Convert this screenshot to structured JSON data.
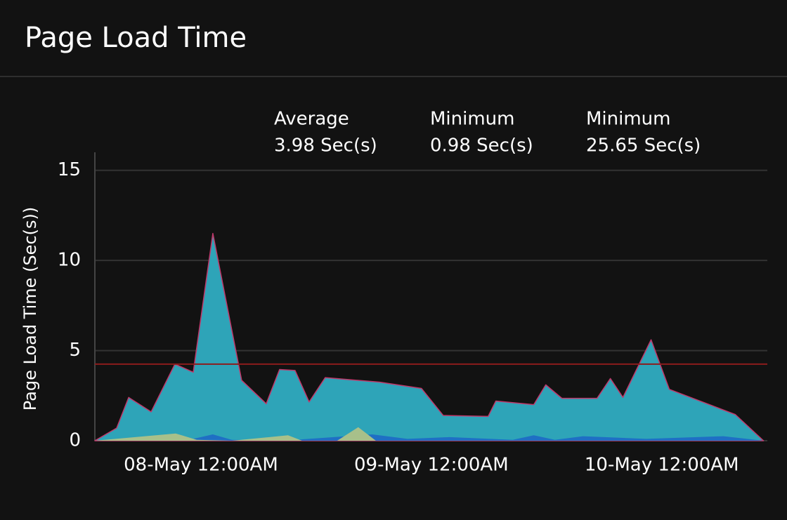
{
  "chart_data": {
    "type": "area",
    "title": "Page Load Time",
    "stats": [
      {
        "label": "Average",
        "value": "3.98 Sec(s)"
      },
      {
        "label": "Minimum",
        "value": "0.98 Sec(s)"
      },
      {
        "label": "Minimum",
        "value": "25.65 Sec(s)"
      }
    ],
    "y_label": "Page Load Time (Sec(s))",
    "xlim": [
      -11.05,
      59
    ],
    "xticks": [
      {
        "value": 0,
        "label": "08-May 12:00AM"
      },
      {
        "value": 24,
        "label": "09-May 12:00AM"
      },
      {
        "value": 48,
        "label": "10-May 12:00AM"
      }
    ],
    "ylim": [
      0,
      16
    ],
    "yticks": [
      0,
      5,
      10,
      15
    ],
    "grid": true,
    "reference_line": {
      "value": 4.25,
      "color": "#8b1c1c"
    },
    "series": [
      {
        "color": "#2ea4b8",
        "stroke": "#c0396b",
        "x": [
          -11.05,
          -8.78,
          -7.53,
          -5.19,
          -2.71,
          -0.8,
          1.24,
          4.24,
          6.8,
          8.19,
          9.8,
          11.27,
          12.95,
          18.58,
          22.97,
          25.24,
          29.92,
          30.72,
          34.67,
          35.92,
          37.6,
          41.26,
          42.65,
          43.96,
          46.89,
          48.79,
          55.67,
          58.6
        ],
        "values": [
          0,
          0.7,
          2.4,
          1.6,
          4.25,
          3.8,
          11.5,
          3.35,
          2.05,
          3.95,
          3.9,
          2.15,
          3.5,
          3.25,
          2.9,
          1.4,
          1.35,
          2.2,
          2.0,
          3.1,
          2.35,
          2.35,
          3.45,
          2.4,
          5.6,
          2.85,
          1.45,
          0
        ]
      },
      {
        "color": "#1f6fc4",
        "x": [
          -11.05,
          -7.39,
          -0.8,
          1.24,
          3.22,
          9.8,
          17.85,
          21.51,
          25.9,
          32.48,
          34.67,
          36.87,
          39.8,
          46.38,
          54.43,
          58.6
        ],
        "values": [
          0,
          0.1,
          0.1,
          0.35,
          0.05,
          0.05,
          0.35,
          0.1,
          0.2,
          0.05,
          0.3,
          0.05,
          0.25,
          0.1,
          0.25,
          0
        ]
      },
      {
        "color": "#a8c08a",
        "x": [
          -11.05,
          -2.63,
          -0.44,
          3.22,
          9.07,
          10.53,
          14.19,
          16.39,
          18.22,
          58.6
        ],
        "values": [
          0,
          0.4,
          0.05,
          0,
          0.3,
          0,
          0,
          0.75,
          0,
          0
        ]
      }
    ]
  }
}
